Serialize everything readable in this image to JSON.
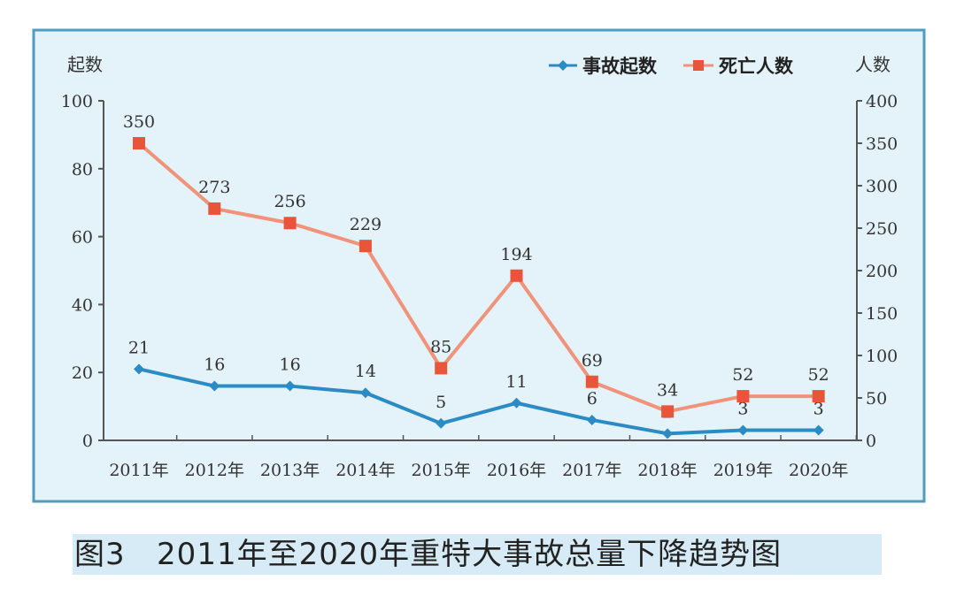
{
  "chart_data": {
    "type": "line",
    "title": "",
    "categories": [
      "2011年",
      "2012年",
      "2013年",
      "2014年",
      "2015年",
      "2016年",
      "2017年",
      "2018年",
      "2019年",
      "2020年"
    ],
    "y_left": {
      "label": "起数",
      "range": [
        0,
        100
      ],
      "ticks": [
        0,
        20,
        40,
        60,
        80,
        100
      ]
    },
    "y_right": {
      "label": "人数",
      "range": [
        0,
        400
      ],
      "ticks": [
        0,
        50,
        100,
        150,
        200,
        250,
        300,
        350,
        400
      ]
    },
    "series": [
      {
        "name": "事故起数",
        "axis": "left",
        "color": "#2b8bc4",
        "marker": "diamond",
        "values": [
          21,
          16,
          16,
          14,
          5,
          11,
          6,
          2,
          3,
          3
        ]
      },
      {
        "name": "死亡人数",
        "axis": "right",
        "color": "#f0937a",
        "marker_color": "#e8553a",
        "marker": "square",
        "values": [
          350,
          273,
          256,
          229,
          85,
          194,
          69,
          34,
          52,
          52
        ]
      }
    ],
    "legend_placement": "top-right",
    "grid": false,
    "colors": {
      "frame_border": "#4f9cc0",
      "frame_bg": "#e4f2f9",
      "caption_band": "#d6ebf5"
    }
  },
  "caption": "图3   2011年至2020年重特大事故总量下降趋势图"
}
